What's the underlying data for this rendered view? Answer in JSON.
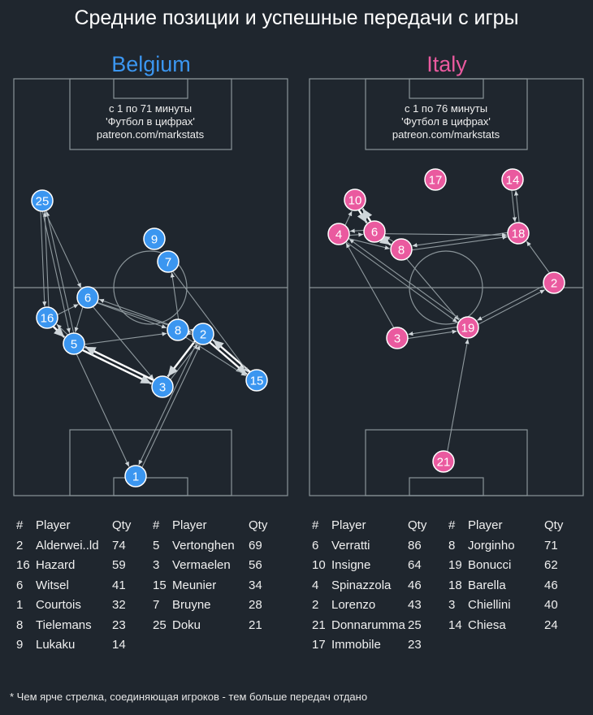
{
  "title": "Средние позиции и успешные передачи с игры",
  "footnote": "* Чем ярче стрелка, соединяющая игроков - тем больше передач отдано",
  "colors": {
    "background": "#1f262e",
    "pitch_lines": "#8a9499",
    "team1": "#3b96f0",
    "team2": "#ea5a9f"
  },
  "team1": {
    "name": "Belgium",
    "caption": [
      "с 1 по 71 минуты",
      "'Футбол в цифрах'",
      "patreon.com/markstats"
    ],
    "table_headers": [
      "#",
      "Player",
      "Qty"
    ],
    "table_left": [
      {
        "num": "2",
        "player": "Alderwei..ld",
        "qty": "74"
      },
      {
        "num": "16",
        "player": "Hazard",
        "qty": "59"
      },
      {
        "num": "6",
        "player": "Witsel",
        "qty": "41"
      },
      {
        "num": "1",
        "player": "Courtois",
        "qty": "32"
      },
      {
        "num": "8",
        "player": "Tielemans",
        "qty": "23"
      },
      {
        "num": "9",
        "player": "Lukaku",
        "qty": "14"
      }
    ],
    "table_right": [
      {
        "num": "5",
        "player": "Vertonghen",
        "qty": "69"
      },
      {
        "num": "3",
        "player": "Vermaelen",
        "qty": "56"
      },
      {
        "num": "15",
        "player": "Meunier",
        "qty": "34"
      },
      {
        "num": "7",
        "player": "Bruyne",
        "qty": "28"
      },
      {
        "num": "25",
        "player": "Doku",
        "qty": "21"
      }
    ]
  },
  "team2": {
    "name": "Italy",
    "caption": [
      "с 1 по 76 минуты",
      "'Футбол в цифрах'",
      "patreon.com/markstats"
    ],
    "table_headers": [
      "#",
      "Player",
      "Qty"
    ],
    "table_left": [
      {
        "num": "6",
        "player": "Verratti",
        "qty": "86"
      },
      {
        "num": "10",
        "player": "Insigne",
        "qty": "64"
      },
      {
        "num": "4",
        "player": "Spinazzola",
        "qty": "46"
      },
      {
        "num": "2",
        "player": "Lorenzo",
        "qty": "43"
      },
      {
        "num": "21",
        "player": "Donnarumma",
        "qty": "25"
      },
      {
        "num": "17",
        "player": "Immobile",
        "qty": "23"
      }
    ],
    "table_right": [
      {
        "num": "8",
        "player": "Jorginho",
        "qty": "71"
      },
      {
        "num": "19",
        "player": "Bonucci",
        "qty": "62"
      },
      {
        "num": "18",
        "player": "Barella",
        "qty": "46"
      },
      {
        "num": "3",
        "player": "Chiellini",
        "qty": "40"
      },
      {
        "num": "14",
        "player": "Chiesa",
        "qty": "24"
      }
    ]
  }
}
